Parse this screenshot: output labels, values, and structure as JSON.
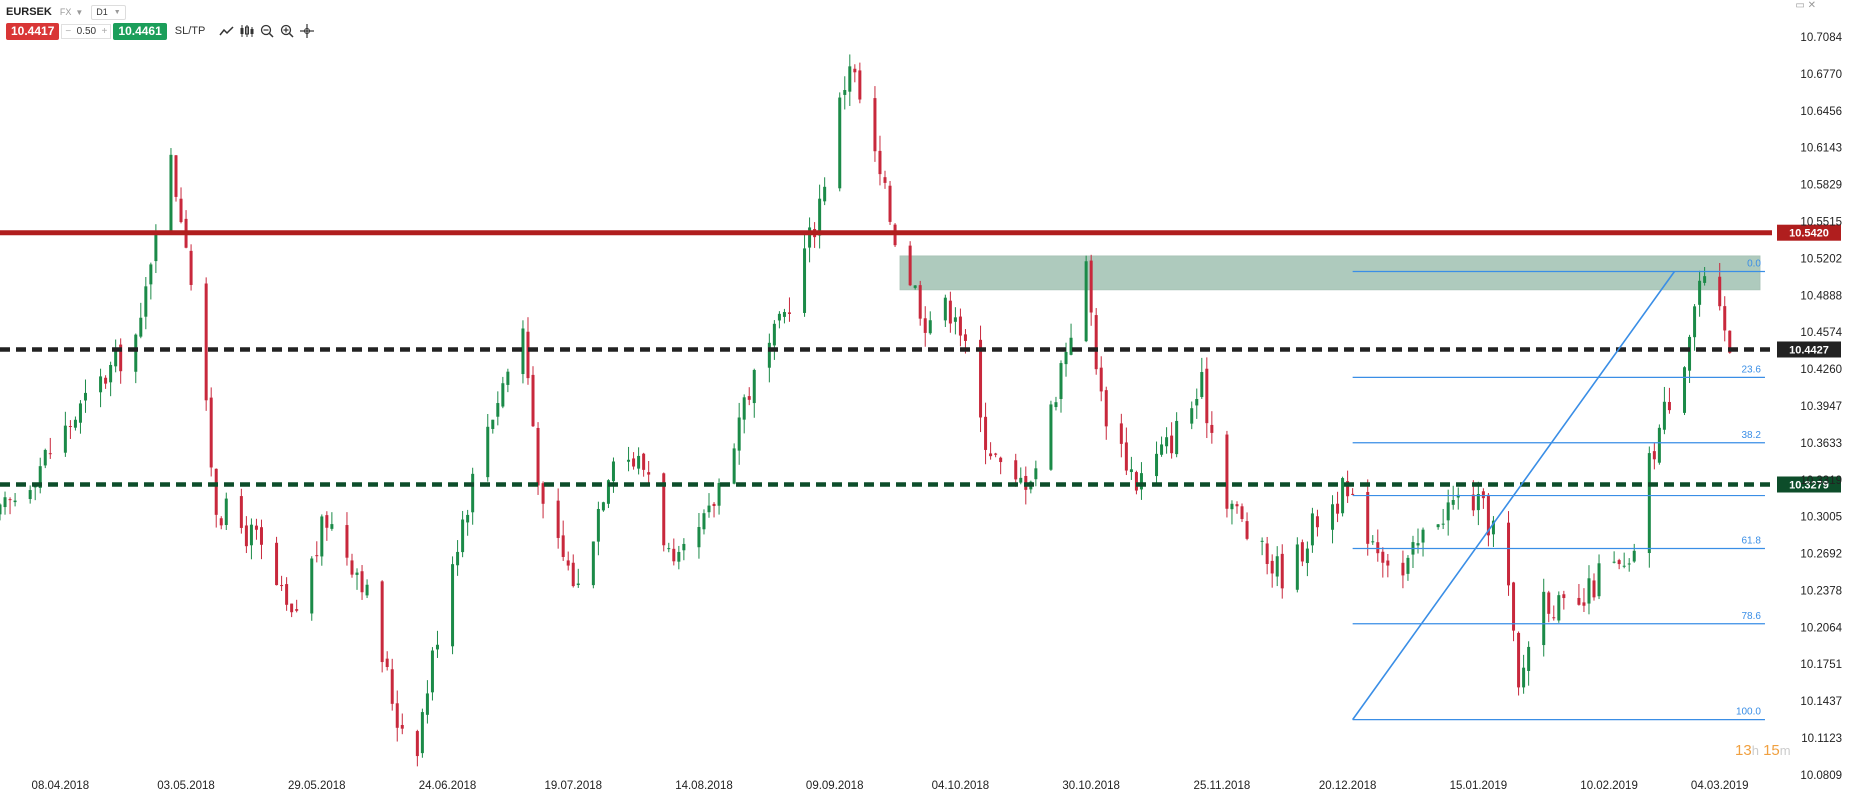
{
  "header": {
    "symbol": "EURSEK",
    "market": "FX",
    "timeframe": "D1",
    "sell_price": "10.4417",
    "buy_price": "10.4461",
    "spread": "0.50",
    "minus": "−",
    "plus": "+",
    "sltp_label": "SL/TP"
  },
  "timer": {
    "hours": "13",
    "h_unit": "h",
    "minutes": "15",
    "m_unit": "m"
  },
  "colors": {
    "bull": "#1b8a48",
    "bear": "#c8283c",
    "resistance": "#b01e1e",
    "support_black": "#222222",
    "support_green": "#0d4d2a",
    "fib": "#3a8ee6",
    "zone": "#8fb5a3"
  },
  "chart_data": {
    "type": "candlestick",
    "symbol": "EURSEK",
    "timeframe": "D1",
    "price_ticks": [
      "10.7084",
      "10.6770",
      "10.6456",
      "10.6143",
      "10.5829",
      "10.5515",
      "10.5202",
      "10.4888",
      "10.4574",
      "10.4260",
      "10.3947",
      "10.3633",
      "10.3319",
      "10.3005",
      "10.2692",
      "10.2378",
      "10.2064",
      "10.1751",
      "10.1437",
      "10.1123",
      "10.0809"
    ],
    "ylim": [
      10.0809,
      10.7084
    ],
    "x_labels": [
      "08.04.2018",
      "03.05.2018",
      "29.05.2018",
      "24.06.2018",
      "19.07.2018",
      "14.08.2018",
      "09.09.2018",
      "04.10.2018",
      "30.10.2018",
      "25.11.2018",
      "20.12.2018",
      "15.01.2019",
      "10.02.2019",
      "04.03.2019"
    ],
    "xlim": [
      "2018-03-27",
      "2019-03-14"
    ],
    "horizontal_lines": [
      {
        "label": "10.5420",
        "value": 10.542,
        "style": "solid",
        "color": "#b01e1e"
      },
      {
        "label": "10.4427",
        "value": 10.4427,
        "style": "dashed",
        "color": "#222222"
      },
      {
        "label": "10.3279",
        "value": 10.3279,
        "style": "dashed",
        "color": "#0d4d2a"
      }
    ],
    "zone": {
      "from_date": "2018-09-22",
      "to_date": "2019-03-12",
      "low": 10.4935,
      "high": 10.5222
    },
    "fibonacci": {
      "from_date": "2018-12-21",
      "to_date": "2019-03-13",
      "levels": [
        {
          "label": "0.0",
          "value": 10.509
        },
        {
          "label": "23.6",
          "value": 10.419
        },
        {
          "label": "38.2",
          "value": 10.3634
        },
        {
          "label": "50.0",
          "value": 10.3185
        },
        {
          "label": "61.8",
          "value": 10.2735
        },
        {
          "label": "78.6",
          "value": 10.2095
        },
        {
          "label": "100.0",
          "value": 10.128
        }
      ]
    },
    "trendline": [
      {
        "date": "2018-12-21",
        "value": 10.128
      },
      {
        "date": "2019-02-23",
        "value": 10.509
      }
    ],
    "points": [
      {
        "date": "2018-03-27",
        "close": 10.3
      },
      {
        "date": "2018-04-10",
        "close": 10.38
      },
      {
        "date": "2018-04-24",
        "close": 10.46
      },
      {
        "date": "2018-04-29",
        "close": 10.62
      },
      {
        "date": "2018-05-03",
        "close": 10.54
      },
      {
        "date": "2018-05-09",
        "close": 10.31
      },
      {
        "date": "2018-05-17",
        "close": 10.28
      },
      {
        "date": "2018-05-24",
        "close": 10.21
      },
      {
        "date": "2018-05-31",
        "close": 10.3
      },
      {
        "date": "2018-06-07",
        "close": 10.25
      },
      {
        "date": "2018-06-14",
        "close": 10.13
      },
      {
        "date": "2018-06-18",
        "close": 10.11
      },
      {
        "date": "2018-06-24",
        "close": 10.25
      },
      {
        "date": "2018-07-02",
        "close": 10.38
      },
      {
        "date": "2018-07-09",
        "close": 10.46
      },
      {
        "date": "2018-07-13",
        "close": 10.3
      },
      {
        "date": "2018-07-20",
        "close": 10.24
      },
      {
        "date": "2018-07-27",
        "close": 10.36
      },
      {
        "date": "2018-08-03",
        "close": 10.34
      },
      {
        "date": "2018-08-08",
        "close": 10.25
      },
      {
        "date": "2018-08-15",
        "close": 10.3
      },
      {
        "date": "2018-08-22",
        "close": 10.4
      },
      {
        "date": "2018-08-29",
        "close": 10.46
      },
      {
        "date": "2018-09-05",
        "close": 10.55
      },
      {
        "date": "2018-09-12",
        "close": 10.69
      },
      {
        "date": "2018-09-16",
        "close": 10.62
      },
      {
        "date": "2018-09-21",
        "close": 10.54
      },
      {
        "date": "2018-09-27",
        "close": 10.47
      },
      {
        "date": "2018-10-03",
        "close": 10.48
      },
      {
        "date": "2018-10-08",
        "close": 10.38
      },
      {
        "date": "2018-10-14",
        "close": 10.32
      },
      {
        "date": "2018-10-20",
        "close": 10.35
      },
      {
        "date": "2018-10-24",
        "close": 10.43
      },
      {
        "date": "2018-10-29",
        "close": 10.51
      },
      {
        "date": "2018-11-01",
        "close": 10.4
      },
      {
        "date": "2018-11-08",
        "close": 10.33
      },
      {
        "date": "2018-11-14",
        "close": 10.36
      },
      {
        "date": "2018-11-21",
        "close": 10.41
      },
      {
        "date": "2018-11-26",
        "close": 10.32
      },
      {
        "date": "2018-12-02",
        "close": 10.27
      },
      {
        "date": "2018-12-08",
        "close": 10.25
      },
      {
        "date": "2018-12-14",
        "close": 10.3
      },
      {
        "date": "2018-12-19",
        "close": 10.32
      },
      {
        "date": "2018-12-24",
        "close": 10.29
      },
      {
        "date": "2018-12-31",
        "close": 10.25
      },
      {
        "date": "2019-01-06",
        "close": 10.3
      },
      {
        "date": "2019-01-13",
        "close": 10.32
      },
      {
        "date": "2019-01-20",
        "close": 10.28
      },
      {
        "date": "2019-01-23",
        "close": 10.15
      },
      {
        "date": "2019-01-27",
        "close": 10.24
      },
      {
        "date": "2019-02-03",
        "close": 10.21
      },
      {
        "date": "2019-02-09",
        "close": 10.26
      },
      {
        "date": "2019-02-14",
        "close": 10.25
      },
      {
        "date": "2019-02-17",
        "close": 10.33
      },
      {
        "date": "2019-02-21",
        "close": 10.39
      },
      {
        "date": "2019-02-25",
        "close": 10.44
      },
      {
        "date": "2019-02-28",
        "close": 10.5
      },
      {
        "date": "2019-03-03",
        "close": 10.48
      },
      {
        "date": "2019-03-06",
        "close": 10.442
      }
    ]
  }
}
